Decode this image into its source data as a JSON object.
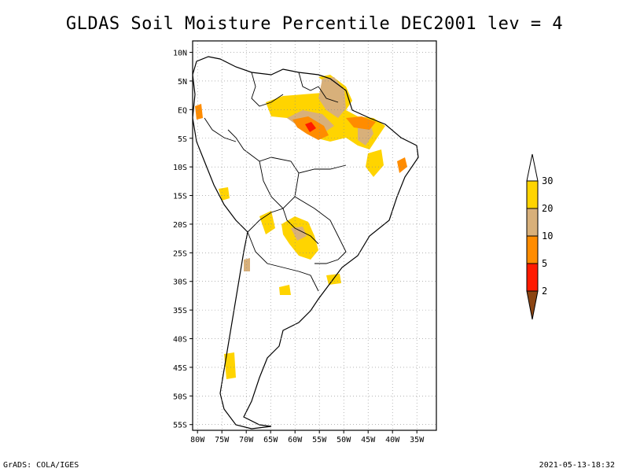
{
  "title": "GLDAS Soil Moisture Percentile DEC2001 lev = 4",
  "footer": {
    "left": "GrADS: COLA/IGES",
    "right": "2021-05-13-18:32"
  },
  "map": {
    "lat_labels": [
      "10N",
      "5N",
      "EQ",
      "5S",
      "10S",
      "15S",
      "20S",
      "25S",
      "30S",
      "35S",
      "40S",
      "45S",
      "50S",
      "55S"
    ],
    "lat_values": [
      10,
      5,
      0,
      -5,
      -10,
      -15,
      -20,
      -25,
      -30,
      -35,
      -40,
      -45,
      -50,
      -55
    ],
    "lon_labels": [
      "80W",
      "75W",
      "70W",
      "65W",
      "60W",
      "55W",
      "50W",
      "45W",
      "40W",
      "35W"
    ],
    "lon_values": [
      -80,
      -75,
      -70,
      -65,
      -60,
      -55,
      -50,
      -45,
      -40,
      -35
    ],
    "extent": {
      "lon_min": -81,
      "lon_max": -31,
      "lat_min": -56,
      "lat_max": 12
    },
    "grid": true
  },
  "colorbar": {
    "labels": [
      "30",
      "20",
      "10",
      "5",
      "2"
    ],
    "colors": {
      "above_30": "#ffffff",
      "20_30": "#ffd400",
      "10_20": "#d8b07a",
      "5_10": "#ff8c00",
      "2_5": "#ff1a00",
      "below_2": "#8b4513"
    }
  }
}
